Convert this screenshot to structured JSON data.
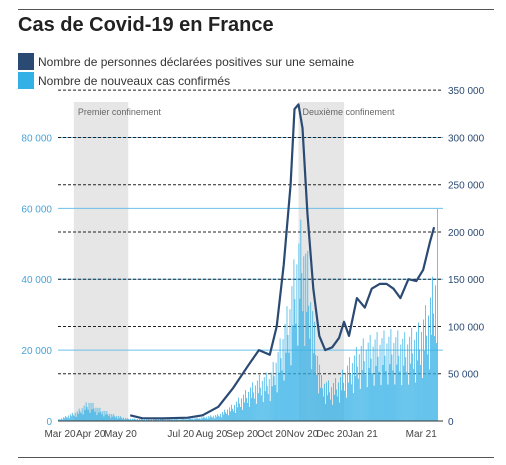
{
  "title": "Cas de Covid-19 en France",
  "legend": [
    {
      "label": "Nombre de personnes déclarées positives sur une semaine",
      "color": "#2b4a73"
    },
    {
      "label": "Nombre de nouveaux cas confirmés",
      "color": "#33b0e6"
    }
  ],
  "colors": {
    "left_axis": "#4aa3d8",
    "right_axis": "#2b4a73",
    "shade": "#e6e6e6"
  },
  "chart_data": {
    "type": "bar+line",
    "x_tick_labels": [
      "Mar 20",
      "Apr 20",
      "May 20",
      "Jul 20",
      "Aug 20",
      "Sep 20",
      "Oct 20",
      "Nov 20",
      "Dec 20",
      "Jan 21",
      "Mar 21"
    ],
    "left_axis": {
      "ticks": [
        "0",
        "20 000",
        "40 000",
        "60 000",
        "80 000"
      ],
      "ylim": [
        0,
        90000
      ]
    },
    "right_axis": {
      "ticks": [
        "0",
        "50 000",
        "100 000",
        "150 000",
        "200 000",
        "250 000",
        "300 000",
        "350 000"
      ],
      "ylim": [
        0,
        337500
      ]
    },
    "annotations": [
      {
        "label": "Premier confinement",
        "start": "2020-03-17",
        "end": "2020-05-11"
      },
      {
        "label": "Deuxième confinement",
        "start": "2020-10-30",
        "end": "2020-12-15"
      }
    ],
    "series": [
      {
        "name": "Nombre de personnes déclarées positives sur une semaine",
        "axis": "right",
        "points": [
          [
            "2020-05-13",
            6000
          ],
          [
            "2020-05-25",
            3000
          ],
          [
            "2020-06-15",
            2800
          ],
          [
            "2020-07-10",
            3500
          ],
          [
            "2020-07-25",
            6000
          ],
          [
            "2020-08-10",
            15000
          ],
          [
            "2020-08-25",
            35000
          ],
          [
            "2020-09-10",
            60000
          ],
          [
            "2020-09-20",
            75000
          ],
          [
            "2020-10-01",
            70000
          ],
          [
            "2020-10-08",
            100000
          ],
          [
            "2020-10-15",
            165000
          ],
          [
            "2020-10-22",
            250000
          ],
          [
            "2020-10-26",
            330000
          ],
          [
            "2020-10-30",
            335000
          ],
          [
            "2020-11-03",
            310000
          ],
          [
            "2020-11-08",
            220000
          ],
          [
            "2020-11-14",
            140000
          ],
          [
            "2020-11-20",
            90000
          ],
          [
            "2020-11-26",
            75000
          ],
          [
            "2020-12-03",
            78000
          ],
          [
            "2020-12-10",
            88000
          ],
          [
            "2020-12-15",
            105000
          ],
          [
            "2020-12-20",
            90000
          ],
          [
            "2020-12-28",
            130000
          ],
          [
            "2021-01-05",
            120000
          ],
          [
            "2021-01-12",
            140000
          ],
          [
            "2021-01-20",
            145000
          ],
          [
            "2021-01-27",
            145000
          ],
          [
            "2021-02-03",
            140000
          ],
          [
            "2021-02-10",
            130000
          ],
          [
            "2021-02-18",
            150000
          ],
          [
            "2021-02-26",
            148000
          ],
          [
            "2021-03-05",
            160000
          ],
          [
            "2021-03-12",
            190000
          ],
          [
            "2021-03-16",
            205000
          ]
        ]
      },
      {
        "name": "Nombre de nouveaux cas confirmés",
        "axis": "left",
        "daily_envelope": [
          [
            "2020-03-01",
            500
          ],
          [
            "2020-03-20",
            3000
          ],
          [
            "2020-04-01",
            6000
          ],
          [
            "2020-04-10",
            4000
          ],
          [
            "2020-04-25",
            2000
          ],
          [
            "2020-05-10",
            800
          ],
          [
            "2020-06-01",
            500
          ],
          [
            "2020-06-30",
            600
          ],
          [
            "2020-07-20",
            1000
          ],
          [
            "2020-08-10",
            2000
          ],
          [
            "2020-08-25",
            5000
          ],
          [
            "2020-09-10",
            10000
          ],
          [
            "2020-09-20",
            13000
          ],
          [
            "2020-10-01",
            14000
          ],
          [
            "2020-10-10",
            22000
          ],
          [
            "2020-10-20",
            35000
          ],
          [
            "2020-10-28",
            52000
          ],
          [
            "2020-11-02",
            58000
          ],
          [
            "2020-11-08",
            48000
          ],
          [
            "2020-11-15",
            28000
          ],
          [
            "2020-11-22",
            13000
          ],
          [
            "2020-12-01",
            11000
          ],
          [
            "2020-12-10",
            13000
          ],
          [
            "2020-12-20",
            18000
          ],
          [
            "2021-01-01",
            23000
          ],
          [
            "2021-01-15",
            25000
          ],
          [
            "2021-02-01",
            26000
          ],
          [
            "2021-02-15",
            25000
          ],
          [
            "2021-03-01",
            28000
          ],
          [
            "2021-03-10",
            35000
          ],
          [
            "2021-03-17",
            45000
          ],
          [
            "2021-03-19",
            65000
          ]
        ]
      }
    ]
  }
}
